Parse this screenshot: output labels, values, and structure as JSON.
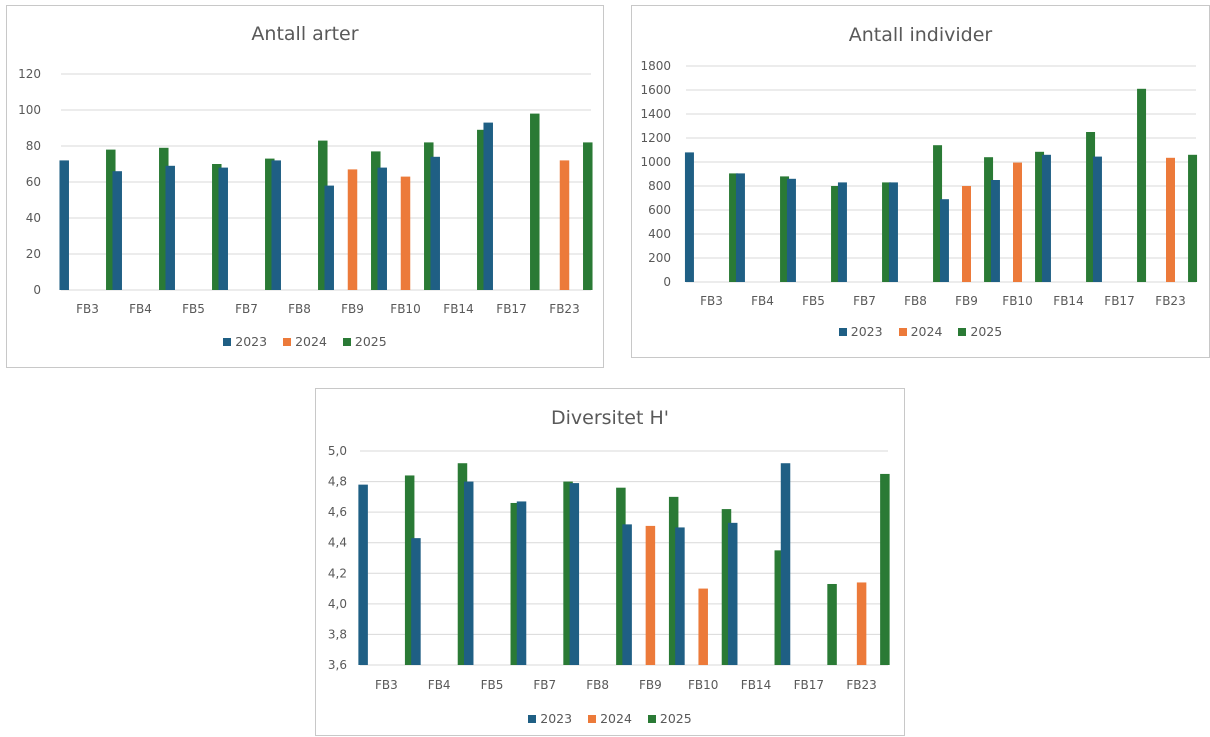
{
  "colors": {
    "2023": "#1f5f84",
    "2024": "#ec7a3a",
    "2025": "#2a7a35",
    "grid": "#d9d9d9",
    "text": "#595959"
  },
  "chart_data": [
    {
      "type": "bar",
      "title": "Antall arter",
      "categories": [
        "FB3",
        "FB4",
        "FB5",
        "FB7",
        "FB8",
        "FB9",
        "FB10",
        "FB14",
        "FB17",
        "FB23"
      ],
      "series": [
        {
          "name": "2023",
          "values": [
            72,
            66,
            69,
            68,
            72,
            58,
            68,
            74,
            93,
            null
          ]
        },
        {
          "name": "2024",
          "values": [
            null,
            null,
            null,
            null,
            null,
            67,
            63,
            null,
            null,
            72
          ]
        },
        {
          "name": "2025",
          "values": [
            78,
            79,
            70,
            73,
            83,
            77,
            82,
            89,
            98,
            82
          ]
        }
      ],
      "ylim": [
        0,
        120
      ],
      "yticks": [
        "0",
        "20",
        "40",
        "60",
        "80",
        "100",
        "120"
      ],
      "grid": true,
      "legend": "bottom"
    },
    {
      "type": "bar",
      "title": "Antall individer",
      "categories": [
        "FB3",
        "FB4",
        "FB5",
        "FB7",
        "FB8",
        "FB9",
        "FB10",
        "FB14",
        "FB17",
        "FB23"
      ],
      "series": [
        {
          "name": "2023",
          "values": [
            1080,
            905,
            860,
            830,
            830,
            690,
            850,
            1060,
            1045,
            null
          ]
        },
        {
          "name": "2024",
          "values": [
            null,
            null,
            null,
            null,
            null,
            800,
            995,
            null,
            null,
            1035
          ]
        },
        {
          "name": "2025",
          "values": [
            905,
            880,
            800,
            830,
            1140,
            1040,
            1085,
            1250,
            1610,
            1060
          ]
        }
      ],
      "ylim": [
        0,
        1800
      ],
      "yticks": [
        "0",
        "200",
        "400",
        "600",
        "800",
        "1000",
        "1200",
        "1400",
        "1600",
        "1800"
      ],
      "grid": true,
      "legend": "bottom"
    },
    {
      "type": "bar",
      "title": "Diversitet H'",
      "categories": [
        "FB3",
        "FB4",
        "FB5",
        "FB7",
        "FB8",
        "FB9",
        "FB10",
        "FB14",
        "FB17",
        "FB23"
      ],
      "series": [
        {
          "name": "2023",
          "values": [
            4.78,
            4.43,
            4.8,
            4.67,
            4.79,
            4.52,
            4.5,
            4.53,
            4.92,
            null
          ]
        },
        {
          "name": "2024",
          "values": [
            null,
            null,
            null,
            null,
            null,
            4.51,
            4.1,
            null,
            null,
            4.14
          ]
        },
        {
          "name": "2025",
          "values": [
            4.84,
            4.92,
            4.66,
            4.8,
            4.76,
            4.7,
            4.62,
            4.35,
            4.13,
            4.85
          ]
        }
      ],
      "ylim": [
        3.6,
        5.0
      ],
      "yticks": [
        "3,6",
        "3,8",
        "4,0",
        "4,2",
        "4,4",
        "4,6",
        "4,8",
        "5,0"
      ],
      "grid": true,
      "legend": "bottom"
    }
  ]
}
